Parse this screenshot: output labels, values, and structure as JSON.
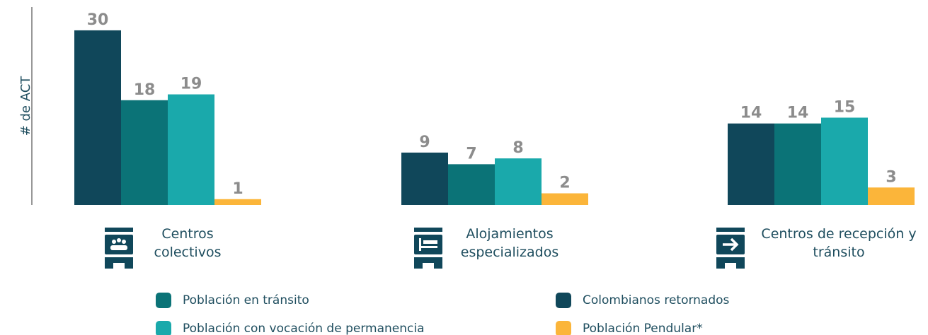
{
  "chart_data": {
    "type": "bar",
    "y_label": "# de ACT",
    "categories": [
      "Centros colectivos",
      "Alojamientos especializados",
      "Centros de recepción y tránsito"
    ],
    "series": [
      {
        "name": "Colombianos retornados",
        "color": "#10475a",
        "values": [
          30,
          9,
          14
        ]
      },
      {
        "name": "Población en tránsito",
        "color": "#0b7377",
        "values": [
          18,
          7,
          14
        ]
      },
      {
        "name": "Población con vocación de permanencia",
        "color": "#1aa9ab",
        "values": [
          19,
          8,
          15
        ]
      },
      {
        "name": "Población Pendular*",
        "color": "#fbb53a",
        "values": [
          1,
          2,
          3
        ]
      }
    ],
    "ylim": [
      0,
      34
    ]
  }
}
